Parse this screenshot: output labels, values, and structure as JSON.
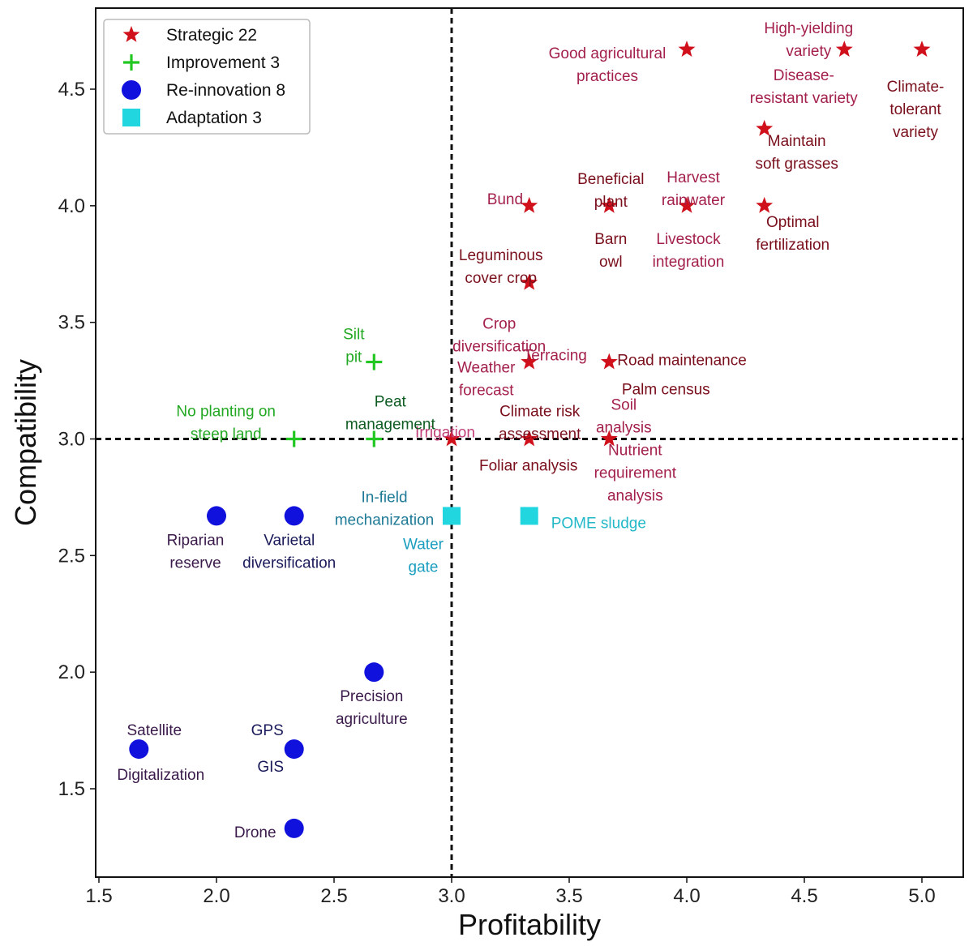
{
  "chart_data": {
    "type": "scatter",
    "xlabel": "Profitability",
    "ylabel": "Compatibility",
    "xlim": [
      1.5,
      5.1
    ],
    "ylim": [
      1.15,
      4.8
    ],
    "xticks": [
      "1.5",
      "2.0",
      "2.5",
      "3.0",
      "3.5",
      "4.0",
      "4.5",
      "5.0"
    ],
    "yticks": [
      "1.5",
      "2.0",
      "2.5",
      "3.0",
      "3.5",
      "4.0",
      "4.5"
    ],
    "reference_lines": {
      "x": 3.0,
      "y": 3.0,
      "style": "dashed"
    },
    "legend": {
      "placement": "top-left",
      "entries": [
        {
          "label": "Strategic 22",
          "marker": "star",
          "color": "#d0101a"
        },
        {
          "label": "Improvement 3",
          "marker": "plus",
          "color": "#22c722"
        },
        {
          "label": "Re-innovation 8",
          "marker": "circle",
          "color": "#1111dd"
        },
        {
          "label": "Adaptation 3",
          "marker": "square",
          "color": "#22d6e0"
        }
      ]
    },
    "series": [
      {
        "name": "Strategic 22",
        "points": [
          {
            "x": 4.0,
            "y": 4.67,
            "labels": [
              {
                "text": "Good agricultural practices",
                "color": "#a3204a"
              }
            ]
          },
          {
            "x": 4.67,
            "y": 4.67,
            "labels": [
              {
                "text": "High-yielding variety",
                "color": "#a3204a"
              }
            ]
          },
          {
            "x": 5.0,
            "y": 4.67,
            "labels": [
              {
                "text": "Climate-tolerant variety",
                "color": "#7a0f1c"
              }
            ]
          },
          {
            "x": 4.67,
            "y": 4.67,
            "labels": [
              {
                "text": "Disease-resistant variety",
                "color": "#a3204a"
              }
            ]
          },
          {
            "x": 4.33,
            "y": 4.33,
            "labels": [
              {
                "text": "Maintain soft grasses",
                "color": "#7a0f1c"
              }
            ]
          },
          {
            "x": 3.33,
            "y": 4.0,
            "labels": [
              {
                "text": "Bund",
                "color": "#a3204a"
              }
            ]
          },
          {
            "x": 3.67,
            "y": 4.0,
            "labels": [
              {
                "text": "Beneficial plant",
                "color": "#7a0f1c"
              },
              {
                "text": "Barn owl",
                "color": "#7a0f1c"
              }
            ]
          },
          {
            "x": 4.0,
            "y": 4.0,
            "labels": [
              {
                "text": "Harvest rainwater",
                "color": "#a3204a"
              },
              {
                "text": "Livestock integration",
                "color": "#a3204a"
              }
            ]
          },
          {
            "x": 4.33,
            "y": 4.0,
            "labels": [
              {
                "text": "Optimal fertilization",
                "color": "#7a0f1c"
              }
            ]
          },
          {
            "x": 3.33,
            "y": 3.67,
            "labels": [
              {
                "text": "Leguminous cover crop",
                "color": "#7a0f1c"
              }
            ]
          },
          {
            "x": 3.33,
            "y": 3.33,
            "labels": [
              {
                "text": "Crop diversification",
                "color": "#a3204a"
              },
              {
                "text": "Terracing",
                "color": "#a3204a"
              },
              {
                "text": "Weather forecast",
                "color": "#a3204a"
              }
            ]
          },
          {
            "x": 3.67,
            "y": 3.33,
            "labels": [
              {
                "text": "Road maintenance",
                "color": "#7a0f1c"
              },
              {
                "text": "Palm census",
                "color": "#7a0f1c"
              }
            ]
          },
          {
            "x": 3.33,
            "y": 3.0,
            "labels": [
              {
                "text": "Climate risk assessment",
                "color": "#7a0f1c"
              },
              {
                "text": "Foliar analysis",
                "color": "#7a0f1c"
              }
            ]
          },
          {
            "x": 3.0,
            "y": 3.0,
            "labels": [
              {
                "text": "Irrigation",
                "color": "#c2407a"
              }
            ]
          },
          {
            "x": 3.67,
            "y": 3.0,
            "labels": [
              {
                "text": "Soil analysis",
                "color": "#a3204a"
              },
              {
                "text": "Nutrient requirement analysis",
                "color": "#a3204a"
              }
            ]
          }
        ]
      },
      {
        "name": "Improvement 3",
        "points": [
          {
            "x": 2.67,
            "y": 3.33,
            "labels": [
              {
                "text": "Silt pit",
                "color": "#22a822"
              }
            ]
          },
          {
            "x": 2.33,
            "y": 3.0,
            "labels": [
              {
                "text": "No planting on steep land",
                "color": "#22a822"
              }
            ]
          },
          {
            "x": 2.67,
            "y": 3.0,
            "labels": [
              {
                "text": "Peat management",
                "color": "#0f5c23"
              }
            ]
          }
        ]
      },
      {
        "name": "Re-innovation 8",
        "points": [
          {
            "x": 2.0,
            "y": 2.67,
            "labels": [
              {
                "text": "Riparian reserve",
                "color": "#3a1a4a"
              }
            ]
          },
          {
            "x": 2.33,
            "y": 2.67,
            "labels": [
              {
                "text": "Varietal diversification",
                "color": "#1a1a5a"
              }
            ]
          },
          {
            "x": 2.67,
            "y": 2.0,
            "labels": [
              {
                "text": "Precision agriculture",
                "color": "#3a1a4a"
              }
            ]
          },
          {
            "x": 1.67,
            "y": 1.67,
            "labels": [
              {
                "text": "Satellite",
                "color": "#3a1a4a"
              },
              {
                "text": "Digitalization",
                "color": "#3a1a4a"
              }
            ]
          },
          {
            "x": 2.33,
            "y": 1.67,
            "labels": [
              {
                "text": "GPS",
                "color": "#1a1a5a"
              },
              {
                "text": "GIS",
                "color": "#1a1a5a"
              }
            ]
          },
          {
            "x": 2.33,
            "y": 1.33,
            "labels": [
              {
                "text": "Drone",
                "color": "#3a1a4a"
              }
            ]
          }
        ]
      },
      {
        "name": "Adaptation 3",
        "points": [
          {
            "x": 3.0,
            "y": 2.67,
            "labels": [
              {
                "text": "In-field mechanization",
                "color": "#1e7a96"
              },
              {
                "text": "Water gate",
                "color": "#1a9ec0"
              }
            ]
          },
          {
            "x": 3.33,
            "y": 2.67,
            "labels": [
              {
                "text": "POME sludge",
                "color": "#22b8c8"
              }
            ]
          }
        ]
      }
    ]
  }
}
